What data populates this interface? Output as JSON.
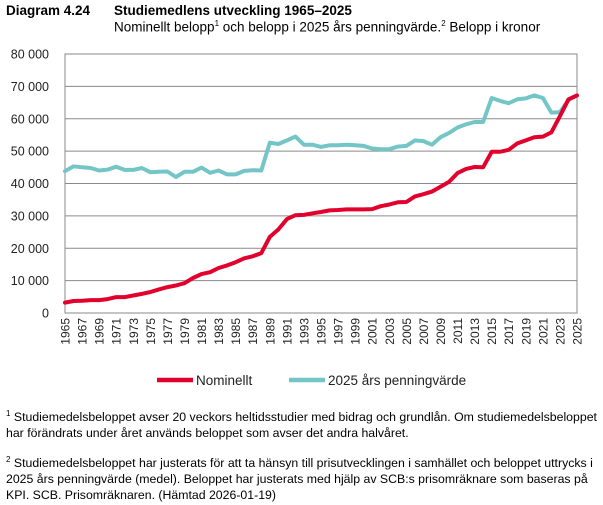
{
  "header": {
    "label": "Diagram 4.24",
    "title": "Studiemedlens utveckling 1965–2025",
    "subtitle_part1": "Nominellt belopp",
    "subtitle_sup1": "1",
    "subtitle_part2": " och belopp i 2025 års penningvärde.",
    "subtitle_sup2": "2",
    "subtitle_part3": " Belopp i kronor"
  },
  "chart_data": {
    "type": "line",
    "title": "Studiemedlens utveckling 1965–2025",
    "subtitle": "Nominellt belopp och belopp i 2025 års penningvärde. Belopp i kronor",
    "x": [
      1965,
      1966,
      1967,
      1968,
      1969,
      1970,
      1971,
      1972,
      1973,
      1974,
      1975,
      1976,
      1977,
      1978,
      1979,
      1980,
      1981,
      1982,
      1983,
      1984,
      1985,
      1986,
      1987,
      1988,
      1989,
      1990,
      1991,
      1992,
      1993,
      1994,
      1995,
      1996,
      1997,
      1998,
      1999,
      2000,
      2001,
      2002,
      2003,
      2004,
      2005,
      2006,
      2007,
      2008,
      2009,
      2010,
      2011,
      2012,
      2013,
      2014,
      2015,
      2016,
      2017,
      2018,
      2019,
      2020,
      2021,
      2022,
      2023,
      2024,
      2025
    ],
    "x_tick_labels": [
      "1965",
      "1967",
      "1969",
      "1971",
      "1973",
      "1975",
      "1977",
      "1979",
      "1981",
      "1983",
      "1985",
      "1987",
      "1989",
      "1991",
      "1993",
      "1995",
      "1997",
      "1999",
      "2001",
      "2003",
      "2005",
      "2007",
      "2009",
      "2011",
      "2013",
      "2015",
      "2017",
      "2019",
      "2021",
      "2023",
      "2025"
    ],
    "y_tick_labels": [
      "0",
      "10 000",
      "20 000",
      "30 000",
      "40 000",
      "50 000",
      "60 000",
      "70 000",
      "80 000"
    ],
    "ylim": [
      0,
      80000
    ],
    "grid": true,
    "legend_placement": "bottom",
    "series": [
      {
        "name": "Nominellt",
        "color": "#e2002d",
        "values": [
          3200,
          3700,
          3800,
          4000,
          4000,
          4300,
          4900,
          4900,
          5400,
          5900,
          6500,
          7300,
          8000,
          8500,
          9200,
          10800,
          12000,
          12600,
          13900,
          14700,
          15700,
          16900,
          17500,
          18500,
          23500,
          25800,
          29000,
          30200,
          30300,
          30800,
          31200,
          31700,
          31800,
          32000,
          32000,
          32000,
          32100,
          33000,
          33500,
          34200,
          34300,
          36000,
          36700,
          37500,
          39000,
          40500,
          43200,
          44500,
          45100,
          45000,
          49800,
          49800,
          50400,
          52400,
          53300,
          54300,
          54500,
          55800,
          60800,
          66000,
          67200
        ]
      },
      {
        "name": "2025 års penningvärde",
        "color": "#74c5c6",
        "values": [
          43800,
          45300,
          45000,
          44800,
          44000,
          44300,
          45200,
          44200,
          44200,
          44800,
          43500,
          43600,
          43700,
          42000,
          43600,
          43600,
          44900,
          43300,
          44000,
          42800,
          42800,
          43900,
          44100,
          44000,
          52600,
          52200,
          53300,
          54500,
          52000,
          52000,
          51300,
          51800,
          51800,
          52000,
          51800,
          51600,
          50800,
          50600,
          50600,
          51400,
          51600,
          53300,
          53100,
          52000,
          54300,
          55600,
          57300,
          58300,
          59000,
          59000,
          66400,
          65500,
          64800,
          66000,
          66300,
          67200,
          66400,
          61900,
          62000,
          65800,
          67200
        ]
      }
    ]
  },
  "footnotes": [
    {
      "num": "1",
      "text": " Studiemedelsbeloppet avser 20 veckors heltidsstudier med bidrag och grundlån. Om studiemedels­beloppet har förändrats under året används beloppet som avser det andra halvåret."
    },
    {
      "num": "2",
      "text": " Studiemedelsbeloppet har justerats för att ta hänsyn till prisutvecklingen i samhället och beloppet uttrycks i 2025 års penningvärde (medel). Beloppet har justerats med hjälp av SCB:s prisomräknare som baseras på KPI. SCB. Prisomräknaren. (Hämtad 2026-01-19)"
    }
  ]
}
